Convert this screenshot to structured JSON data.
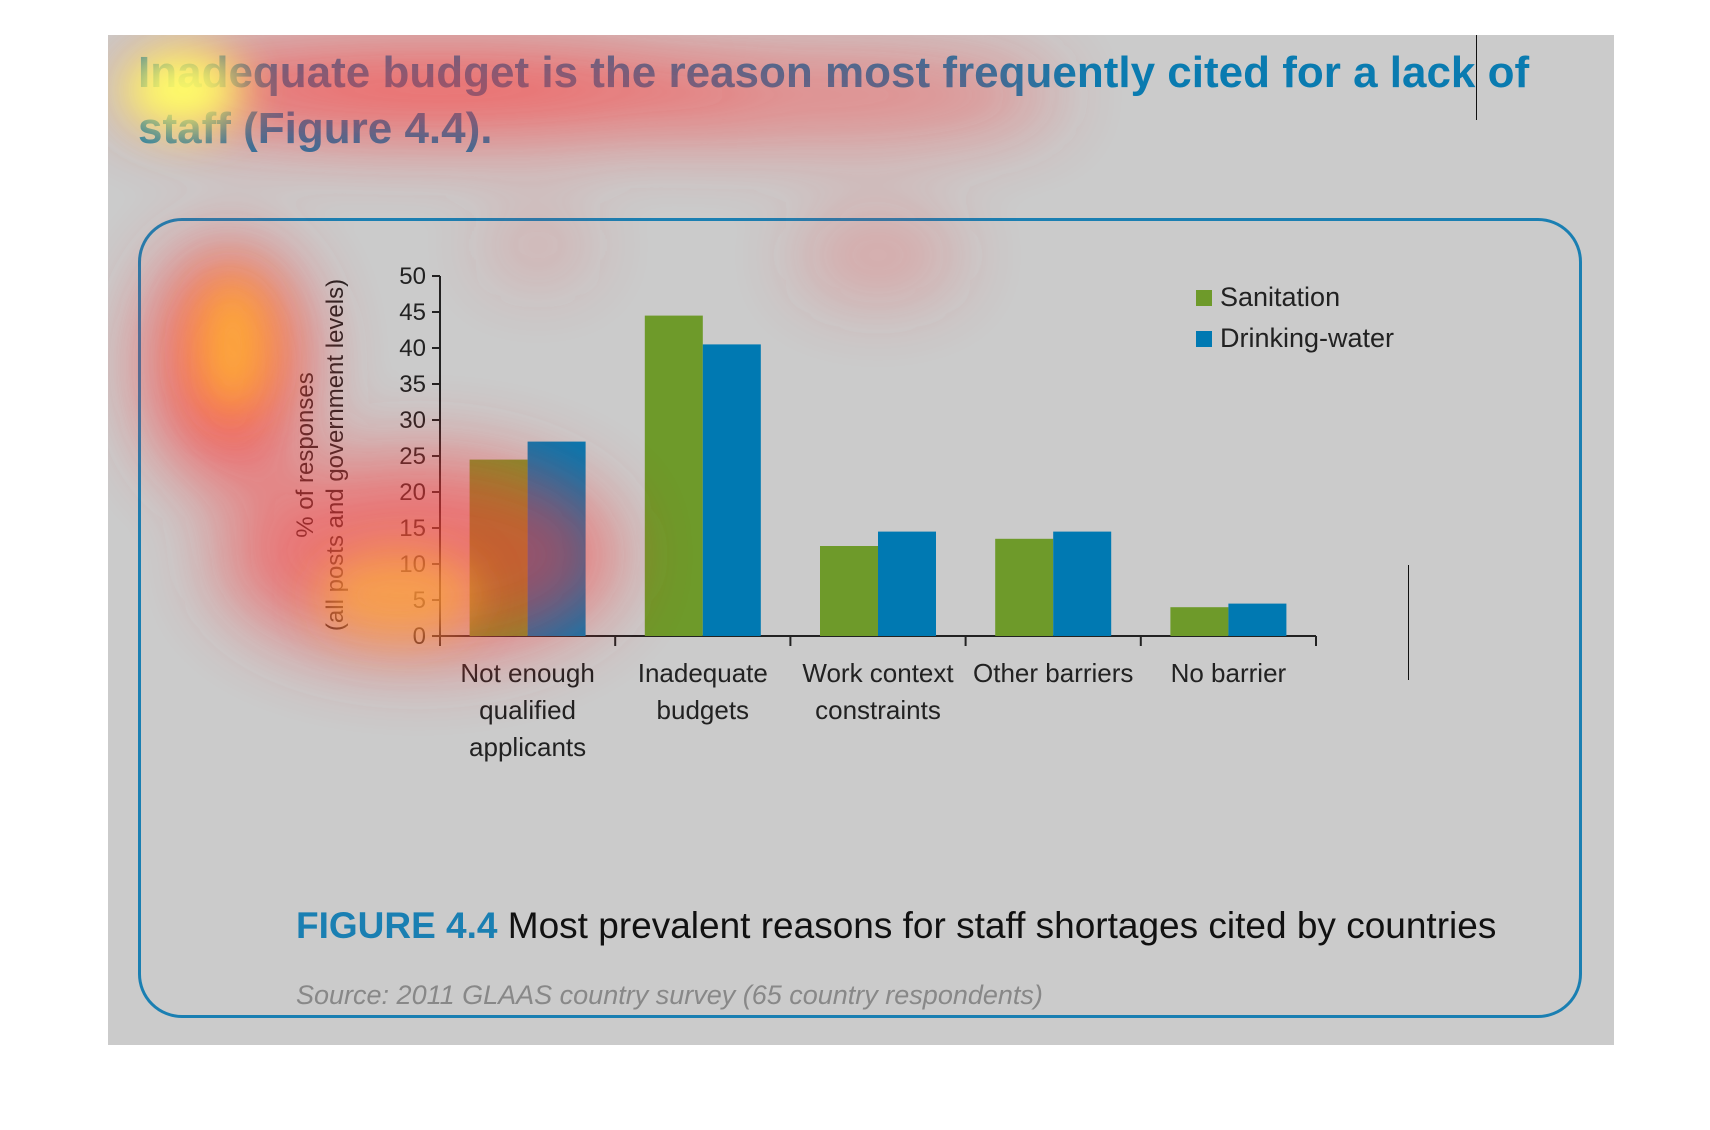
{
  "headline": "Inadequate budget is the reason most frequently cited for a lack of staff (Figure 4.4).",
  "colors": {
    "sanitation": "#6e9a2a",
    "drinking_water": "#0079b2",
    "accent": "#1a7fb2",
    "panel": "#cbcbcb"
  },
  "chart_data": {
    "type": "bar",
    "ylabel": "% of responses\n(all posts and government levels)",
    "xlabel": "",
    "ylim": [
      0,
      50
    ],
    "yticks": [
      0,
      5,
      10,
      15,
      20,
      25,
      30,
      35,
      40,
      45,
      50
    ],
    "categories": [
      "Not enough\nqualified\napplicants",
      "Inadequate\nbudgets",
      "Work context\nconstraints",
      "Other barriers",
      "No barrier"
    ],
    "series": [
      {
        "name": "Sanitation",
        "values": [
          24.5,
          44.5,
          12.5,
          13.5,
          4
        ]
      },
      {
        "name": "Drinking-water",
        "values": [
          27,
          40.5,
          14.5,
          14.5,
          4.5
        ]
      }
    ],
    "legend_position": "top-right",
    "grid": false
  },
  "caption": {
    "label": "FIGURE 4.4",
    "text": "Most prevalent reasons for staff shortages cited by countries"
  },
  "source": "Source: 2011 GLAAS country survey (65 country respondents)"
}
